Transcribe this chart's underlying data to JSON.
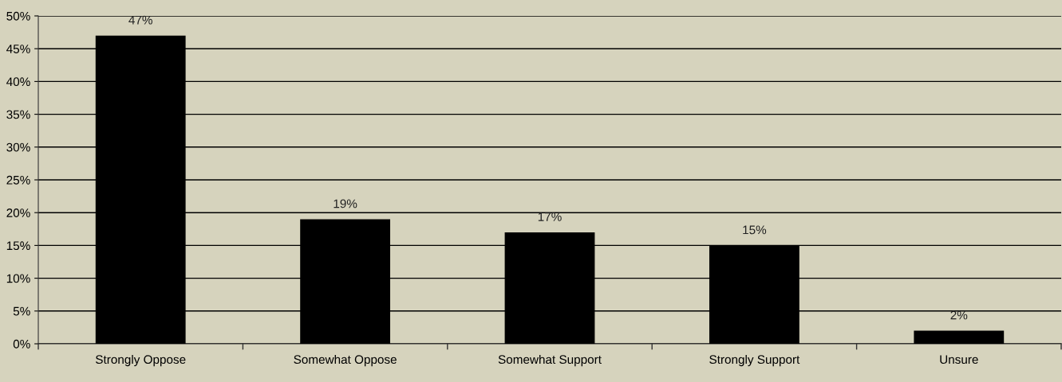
{
  "chart_data": {
    "type": "bar",
    "categories": [
      "Strongly Oppose",
      "Somewhat Oppose",
      "Somewhat Support",
      "Strongly Support",
      "Unsure"
    ],
    "values": [
      47,
      19,
      17,
      15,
      2
    ],
    "value_labels": [
      "47%",
      "19%",
      "17%",
      "15%",
      "2%"
    ],
    "color": "#000000",
    "ylim": [
      0,
      50
    ],
    "yticks": [
      {
        "value": 0,
        "label": "0%"
      },
      {
        "value": 5,
        "label": "5%"
      },
      {
        "value": 10,
        "label": "10%"
      },
      {
        "value": 15,
        "label": "15%"
      },
      {
        "value": 20,
        "label": "20%"
      },
      {
        "value": 25,
        "label": "25%"
      },
      {
        "value": 30,
        "label": "30%"
      },
      {
        "value": 35,
        "label": "35%"
      },
      {
        "value": 40,
        "label": "40%"
      },
      {
        "value": 45,
        "label": "45%"
      },
      {
        "value": 50,
        "label": "50%"
      }
    ],
    "grid": "y",
    "legend": false
  }
}
